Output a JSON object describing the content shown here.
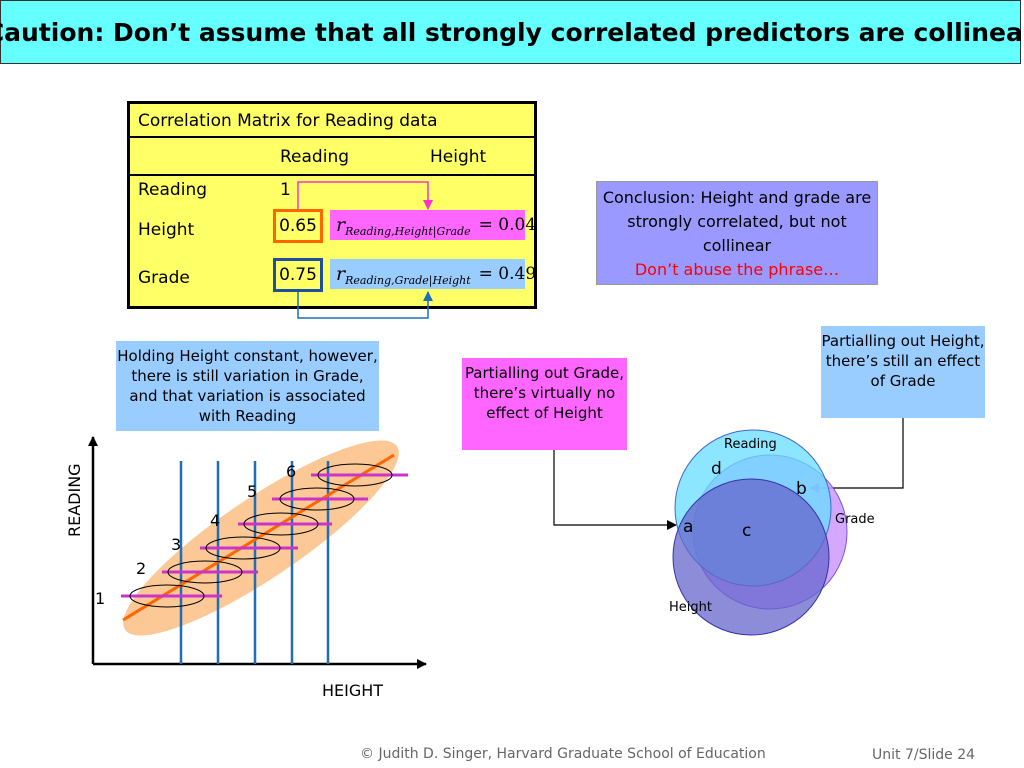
{
  "title": "Caution: Don’t assume that all strongly correlated predictors are collinear",
  "matrix": {
    "header": "Correlation Matrix for Reading data",
    "col_reading": "Reading",
    "col_height": "Height",
    "row_reading": "Reading",
    "row_height": "Height",
    "row_grade": "Grade",
    "val_reading": "1",
    "val_height": "0.65",
    "val_grade": "0.75"
  },
  "formula_height": {
    "r": "r",
    "sub": "Reading,Height|Grade",
    "eq": "= 0.04"
  },
  "formula_grade": {
    "r": "r",
    "sub": "Reading,Grade|Height",
    "eq": "= 0.49"
  },
  "conclusion": {
    "text": "Conclusion: Height and grade are strongly correlated, but not collinear",
    "warning": "Don’t abuse the phrase…"
  },
  "holding_note": "Holding Height constant, however, there is still variation in Grade, and that variation is associated with Reading",
  "partial_grade_note": "Partialling out Grade, there’s virtually no effect of Height",
  "partial_height_note": "Partialling out Height, there’s still an effect of Grade",
  "scatter": {
    "ylabel": "READING",
    "xlabel": "HEIGHT",
    "grade_labels": [
      "1",
      "2",
      "3",
      "4",
      "5",
      "6"
    ]
  },
  "venn": {
    "reading": "Reading",
    "grade": "Grade",
    "height": "Height",
    "a": "a",
    "b": "b",
    "c": "c",
    "d": "d"
  },
  "colors": {
    "title_bg": "#66ffff",
    "matrix_bg": "#ffff66",
    "orange": "#ff6600",
    "magenta": "#ff33cc",
    "blue_line": "#1f6fb8",
    "conclusion_bg": "#9999ff",
    "warning": "#ff0000",
    "note_blue": "#99ccff",
    "note_pink": "#ff66ff",
    "ellipse_fill": "#fbc896"
  },
  "footer": {
    "copyright": "© Judith D. Singer, Harvard Graduate School of Education",
    "slide": "Unit 7/Slide 24"
  }
}
